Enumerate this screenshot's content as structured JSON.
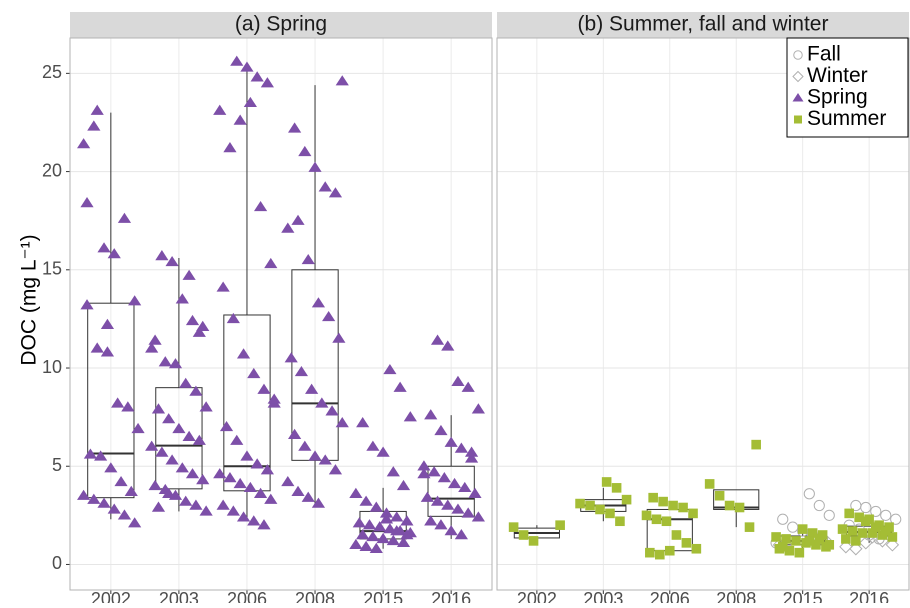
{
  "chart_data": [
    {
      "type": "box",
      "title": "(a) Spring",
      "ylabel": "DOC (mg L⁻¹)",
      "categories": [
        "2002",
        "2003",
        "2006",
        "2008",
        "2015",
        "2016"
      ],
      "ylim": [
        -1.3,
        26.8
      ],
      "yticks": [
        0,
        5,
        10,
        15,
        20,
        25
      ],
      "grid": true,
      "legend": false,
      "boxes": [
        {
          "low": 2.3,
          "q1": 3.4,
          "median": 5.65,
          "q3": 13.3,
          "high": 23.0
        },
        {
          "low": 2.7,
          "q1": 3.85,
          "median": 6.05,
          "q3": 9.0,
          "high": 15.6
        },
        {
          "low": 2.2,
          "q1": 3.75,
          "median": 5.0,
          "q3": 12.7,
          "high": 25.5
        },
        {
          "low": 2.9,
          "q1": 5.3,
          "median": 8.2,
          "q3": 15.0,
          "high": 24.4
        },
        {
          "low": 0.8,
          "q1": 1.3,
          "median": 1.7,
          "q3": 2.7,
          "high": 3.9
        },
        {
          "low": 1.3,
          "q1": 2.45,
          "median": 3.35,
          "q3": 5.0,
          "high": 7.6
        }
      ],
      "series": [
        {
          "name": "Spring",
          "color": "#7d4fa8",
          "shape": "triangle",
          "values": [
            [
              21.4,
              22.3,
              16.1,
              15.8,
              17.6,
              13.4,
              13.2,
              11.0,
              10.8,
              8.2,
              8.0,
              6.9,
              5.6,
              5.5,
              4.9,
              4.2,
              3.7,
              3.5,
              3.3,
              3.1,
              2.8,
              2.5,
              2.1,
              18.4,
              23.1,
              12.2
            ],
            [
              14.7,
              11.8,
              11.0,
              15.7,
              15.4,
              13.5,
              12.4,
              12.1,
              11.4,
              10.3,
              10.2,
              9.2,
              8.8,
              8.0,
              7.9,
              7.4,
              6.9,
              6.5,
              6.3,
              6.0,
              5.7,
              5.3,
              4.9,
              4.6,
              4.3,
              4.0,
              3.8,
              3.5,
              3.2,
              3.0,
              2.7,
              2.9,
              3.6
            ],
            [
              25.6,
              25.3,
              24.8,
              24.5,
              23.1,
              21.2,
              22.6,
              23.5,
              18.2,
              15.3,
              14.1,
              12.5,
              10.7,
              9.7,
              8.9,
              8.2,
              7.0,
              6.3,
              5.5,
              5.1,
              4.8,
              4.6,
              4.4,
              4.1,
              3.9,
              3.6,
              3.3,
              3.0,
              2.7,
              2.4,
              2.2,
              2.0,
              8.4
            ],
            [
              24.6,
              22.2,
              21.0,
              20.2,
              19.2,
              18.9,
              17.1,
              17.5,
              15.5,
              13.3,
              12.6,
              11.5,
              10.5,
              9.8,
              8.9,
              8.2,
              7.8,
              7.2,
              6.6,
              6.0,
              5.5,
              5.3,
              4.8,
              4.2,
              3.7,
              3.4,
              3.1
            ],
            [
              9.9,
              9.0,
              7.5,
              7.2,
              6.0,
              5.7,
              4.7,
              4.0,
              3.6,
              3.2,
              2.9,
              2.6,
              2.4,
              2.2,
              2.1,
              2.0,
              1.9,
              1.8,
              1.7,
              1.6,
              1.5,
              1.4,
              1.3,
              1.2,
              1.1,
              1.0,
              0.9,
              0.8,
              2.3,
              1.7,
              1.5
            ],
            [
              11.4,
              11.1,
              9.3,
              9.0,
              7.9,
              7.6,
              6.8,
              6.2,
              5.9,
              5.4,
              5.0,
              4.7,
              4.4,
              4.1,
              3.9,
              3.6,
              3.4,
              3.2,
              3.0,
              2.8,
              2.6,
              2.4,
              2.2,
              2.0,
              1.7,
              1.5,
              5.7,
              4.6
            ]
          ]
        }
      ]
    },
    {
      "type": "box",
      "title": "(b) Summer, fall and winter",
      "categories": [
        "2002",
        "2003",
        "2006",
        "2008",
        "2015",
        "2016"
      ],
      "ylim": [
        -1.3,
        26.8
      ],
      "yticks": [
        0,
        5,
        10,
        15,
        20,
        25
      ],
      "grid": true,
      "legend": "top-right",
      "boxes": [
        {
          "low": 1.2,
          "q1": 1.35,
          "median": 1.6,
          "q3": 1.85,
          "high": 2.0
        },
        {
          "low": 2.2,
          "q1": 2.7,
          "median": 3.0,
          "q3": 3.3,
          "high": 3.9
        },
        {
          "low": 0.55,
          "q1": 0.7,
          "median": 2.3,
          "q3": 2.8,
          "high": 3.1
        },
        {
          "low": 1.9,
          "q1": 2.8,
          "median": 2.9,
          "q3": 3.8,
          "high": 3.8
        },
        {
          "low": 0.6,
          "q1": 1.0,
          "median": 1.2,
          "q3": 1.45,
          "high": 1.9
        },
        {
          "low": 1.1,
          "q1": 1.45,
          "median": 1.65,
          "q3": 1.95,
          "high": 2.5
        }
      ],
      "series": [
        {
          "name": "Fall",
          "color": "#b0b0b0",
          "shape": "circle-open",
          "values": [
            [],
            [],
            [],
            [],
            [
              3.6,
              3.0,
              2.5,
              2.3,
              1.9,
              1.7,
              1.5,
              1.3,
              1.1,
              1.0
            ],
            [
              3.0,
              2.9,
              2.7,
              2.5,
              2.3,
              2.0,
              1.8,
              1.5,
              1.3
            ]
          ]
        },
        {
          "name": "Winter",
          "color": "#b0b0b0",
          "shape": "diamond-open",
          "values": [
            [],
            [],
            [],
            [],
            [
              1.2,
              1.0
            ],
            [
              1.4,
              1.2,
              1.0,
              0.9,
              0.8,
              1.1
            ]
          ]
        },
        {
          "name": "Spring",
          "color": "#7d4fa8",
          "shape": "triangle",
          "values": [
            [],
            [],
            [],
            [],
            [],
            []
          ]
        },
        {
          "name": "Summer",
          "color": "#a4bd35",
          "shape": "square",
          "values": [
            [
              2.0,
              1.9,
              1.5,
              1.2
            ],
            [
              4.2,
              3.9,
              3.3,
              3.1,
              3.0,
              2.8,
              2.6,
              2.2
            ],
            [
              3.4,
              3.2,
              3.0,
              2.9,
              2.6,
              2.5,
              2.3,
              2.2,
              1.5,
              1.1,
              0.8,
              0.6,
              0.5,
              0.7
            ],
            [
              6.1,
              4.1,
              3.5,
              3.0,
              2.9,
              1.9
            ],
            [
              1.8,
              1.6,
              1.5,
              1.4,
              1.3,
              1.2,
              1.1,
              1.0,
              0.9,
              0.8,
              0.7,
              0.6,
              1.2,
              1.3,
              1.0,
              0.9
            ],
            [
              2.6,
              2.4,
              2.3,
              2.0,
              1.9,
              1.8,
              1.7,
              1.6,
              1.6,
              1.5,
              1.4,
              1.3,
              1.2,
              2.2,
              1.9,
              1.7
            ]
          ]
        }
      ]
    }
  ]
}
